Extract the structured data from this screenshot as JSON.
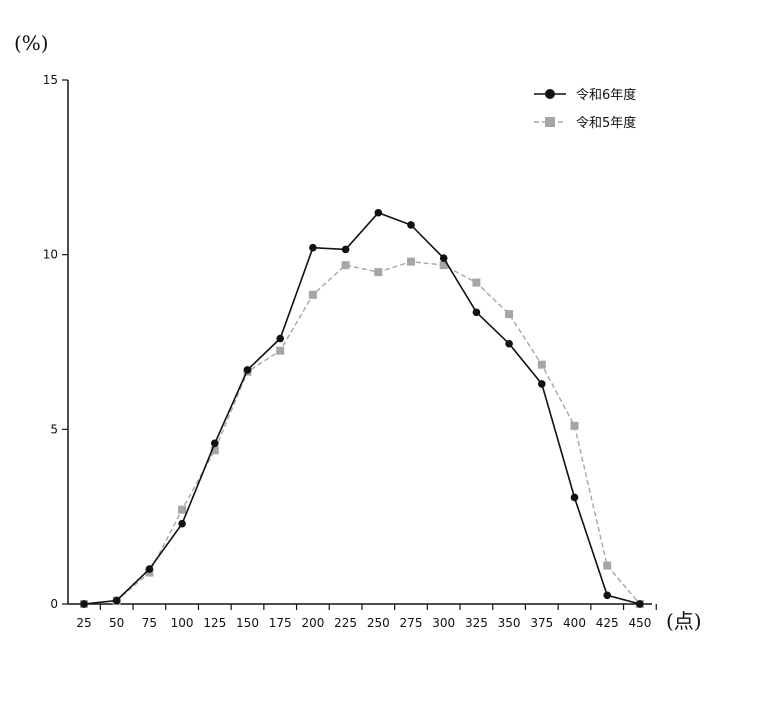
{
  "chart_data": {
    "type": "line",
    "y_unit_label": "(%)",
    "x_unit_label": "(点)",
    "x": [
      25,
      50,
      75,
      100,
      125,
      150,
      175,
      200,
      225,
      250,
      275,
      300,
      325,
      350,
      375,
      400,
      425,
      450
    ],
    "ylim": [
      0,
      15
    ],
    "yticks": [
      0,
      5,
      10,
      15
    ],
    "grid": false,
    "legend_position": "top-right",
    "series": [
      {
        "name": "令和6年度",
        "color": "#111111",
        "marker": "circle",
        "line_style": "solid",
        "values": [
          0,
          0.1,
          1.0,
          2.3,
          4.6,
          6.7,
          7.6,
          10.2,
          10.15,
          11.2,
          10.85,
          9.9,
          8.35,
          7.45,
          6.3,
          3.05,
          0.25,
          0
        ]
      },
      {
        "name": "令和5年度",
        "color": "#a6a6a6",
        "marker": "square",
        "line_style": "dashed",
        "values": [
          0,
          0.1,
          0.9,
          2.7,
          4.4,
          6.65,
          7.25,
          8.85,
          9.7,
          9.5,
          9.8,
          9.7,
          9.2,
          8.3,
          6.85,
          5.1,
          1.1,
          0
        ]
      }
    ]
  }
}
